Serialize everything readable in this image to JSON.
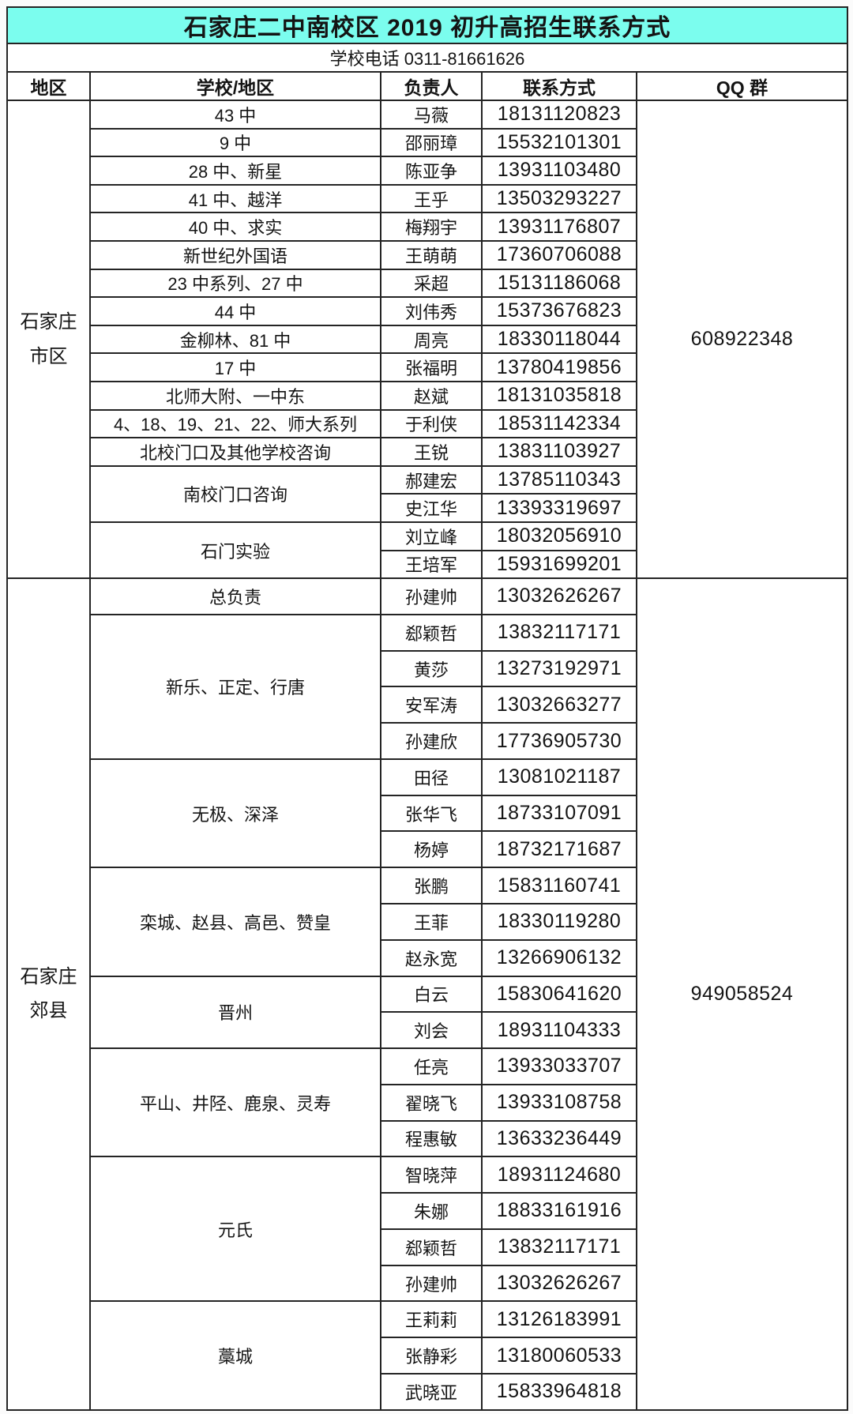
{
  "title": "石家庄二中南校区 2019 初升高招生联系方式",
  "subtitle": "学校电话 0311-81661626",
  "columns": [
    "地区",
    "学校/地区",
    "负责人",
    "联系方式",
    "QQ 群"
  ],
  "colors": {
    "title_bg": "#7bfdee",
    "border": "#242424",
    "text": "#141414"
  },
  "sections": [
    {
      "region_lines": [
        "石家庄",
        "市区"
      ],
      "qq": "608922348",
      "groups": [
        {
          "school": "43 中",
          "contacts": [
            {
              "name": "马薇",
              "phone": "18131120823"
            }
          ]
        },
        {
          "school": "9 中",
          "contacts": [
            {
              "name": "邵丽璋",
              "phone": "15532101301"
            }
          ]
        },
        {
          "school": "28 中、新星",
          "contacts": [
            {
              "name": "陈亚争",
              "phone": "13931103480"
            }
          ]
        },
        {
          "school": "41 中、越洋",
          "contacts": [
            {
              "name": "王乎",
              "phone": "13503293227"
            }
          ]
        },
        {
          "school": "40 中、求实",
          "contacts": [
            {
              "name": "梅翔宇",
              "phone": "13931176807"
            }
          ]
        },
        {
          "school": "新世纪外国语",
          "contacts": [
            {
              "name": "王萌萌",
              "phone": "17360706088"
            }
          ]
        },
        {
          "school": "23 中系列、27 中",
          "contacts": [
            {
              "name": "采超",
              "phone": "15131186068"
            }
          ]
        },
        {
          "school": "44 中",
          "contacts": [
            {
              "name": "刘伟秀",
              "phone": "15373676823"
            }
          ]
        },
        {
          "school": "金柳林、81 中",
          "contacts": [
            {
              "name": "周亮",
              "phone": "18330118044"
            }
          ]
        },
        {
          "school": "17 中",
          "contacts": [
            {
              "name": "张福明",
              "phone": "13780419856"
            }
          ]
        },
        {
          "school": "北师大附、一中东",
          "contacts": [
            {
              "name": "赵斌",
              "phone": "18131035818"
            }
          ]
        },
        {
          "school": "4、18、19、21、22、师大系列",
          "contacts": [
            {
              "name": "于利侠",
              "phone": "18531142334"
            }
          ]
        },
        {
          "school": "北校门口及其他学校咨询",
          "contacts": [
            {
              "name": "王锐",
              "phone": "13831103927"
            }
          ]
        },
        {
          "school": "南校门口咨询",
          "contacts": [
            {
              "name": "郝建宏",
              "phone": "13785110343"
            },
            {
              "name": "史江华",
              "phone": "13393319697"
            }
          ]
        },
        {
          "school": "石门实验",
          "contacts": [
            {
              "name": "刘立峰",
              "phone": "18032056910"
            },
            {
              "name": "王培军",
              "phone": "15931699201"
            }
          ]
        }
      ]
    },
    {
      "region_lines": [
        "石家庄",
        "郊县"
      ],
      "qq": "949058524",
      "groups": [
        {
          "school": "总负责",
          "contacts": [
            {
              "name": "孙建帅",
              "phone": "13032626267"
            }
          ]
        },
        {
          "school": "新乐、正定、行唐",
          "contacts": [
            {
              "name": "郄颖哲",
              "phone": "13832117171"
            },
            {
              "name": "黄莎",
              "phone": "13273192971"
            },
            {
              "name": "安军涛",
              "phone": "13032663277"
            },
            {
              "name": "孙建欣",
              "phone": "17736905730"
            }
          ]
        },
        {
          "school": "无极、深泽",
          "contacts": [
            {
              "name": "田径",
              "phone": "13081021187"
            },
            {
              "name": "张华飞",
              "phone": "18733107091"
            },
            {
              "name": "杨婷",
              "phone": "18732171687"
            }
          ]
        },
        {
          "school": "栾城、赵县、高邑、赞皇",
          "contacts": [
            {
              "name": "张鹏",
              "phone": "15831160741"
            },
            {
              "name": "王菲",
              "phone": "18330119280"
            },
            {
              "name": "赵永宽",
              "phone": "13266906132"
            }
          ]
        },
        {
          "school": "晋州",
          "contacts": [
            {
              "name": "白云",
              "phone": "15830641620"
            },
            {
              "name": "刘会",
              "phone": "18931104333"
            }
          ]
        },
        {
          "school": "平山、井陉、鹿泉、灵寿",
          "contacts": [
            {
              "name": "任亮",
              "phone": "13933033707"
            },
            {
              "name": "翟晓飞",
              "phone": "13933108758"
            },
            {
              "name": "程惠敏",
              "phone": "13633236449"
            }
          ]
        },
        {
          "school": "元氏",
          "contacts": [
            {
              "name": "智晓萍",
              "phone": "18931124680"
            },
            {
              "name": "朱娜",
              "phone": "18833161916"
            },
            {
              "name": "郄颖哲",
              "phone": "13832117171"
            },
            {
              "name": "孙建帅",
              "phone": "13032626267"
            }
          ]
        },
        {
          "school": "藁城",
          "contacts": [
            {
              "name": "王莉莉",
              "phone": "13126183991"
            },
            {
              "name": "张静彩",
              "phone": "13180060533"
            },
            {
              "name": "武晓亚",
              "phone": "15833964818"
            }
          ]
        }
      ]
    }
  ]
}
